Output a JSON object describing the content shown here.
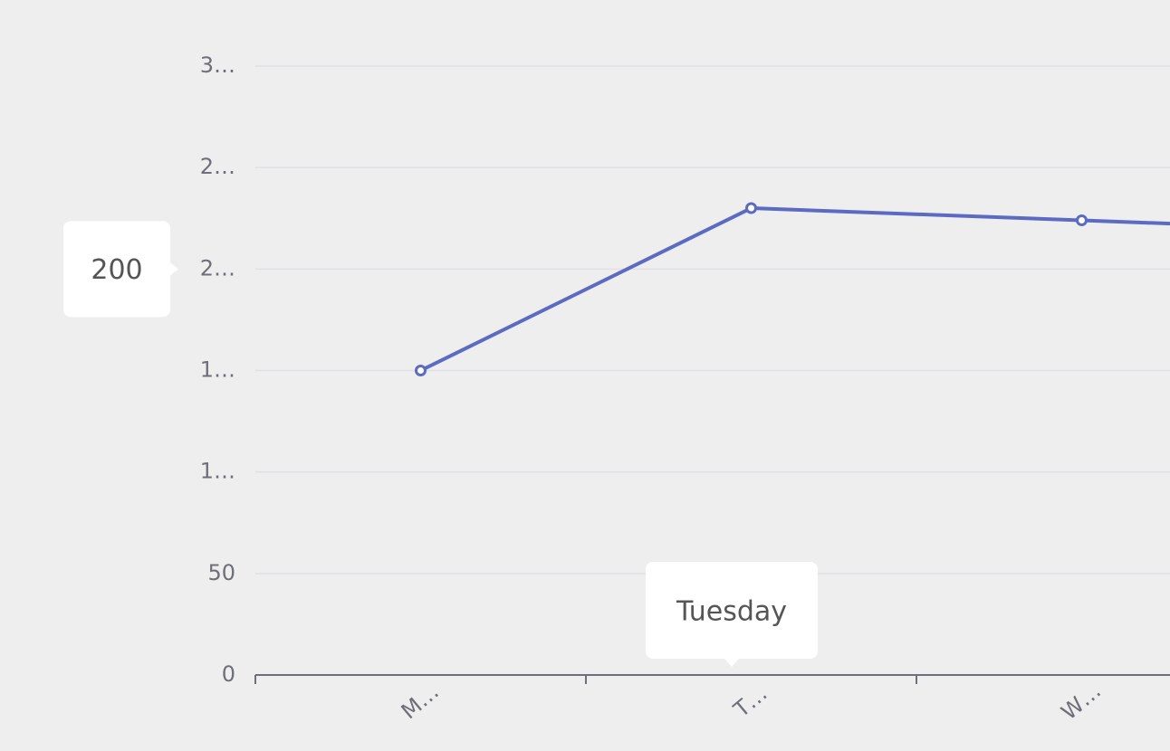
{
  "chart_data": {
    "type": "line",
    "categories": [
      "M…",
      "T…",
      "W…",
      null
    ],
    "series": [
      {
        "name": null,
        "color": "#5b6bc4",
        "values": [
          150,
          230,
          224,
          218
        ]
      }
    ],
    "ylim": [
      0,
      300
    ],
    "yticks": [
      0,
      50,
      {
        "value": 100,
        "label": "1…"
      },
      {
        "value": 150,
        "label": "1…"
      },
      {
        "value": 200,
        "label": "2…"
      },
      {
        "value": 250,
        "label": "2…"
      },
      {
        "value": 300,
        "label": "3…"
      }
    ],
    "grid": true,
    "axis_pointer": {
      "y": 200,
      "x": "Tuesday"
    }
  }
}
